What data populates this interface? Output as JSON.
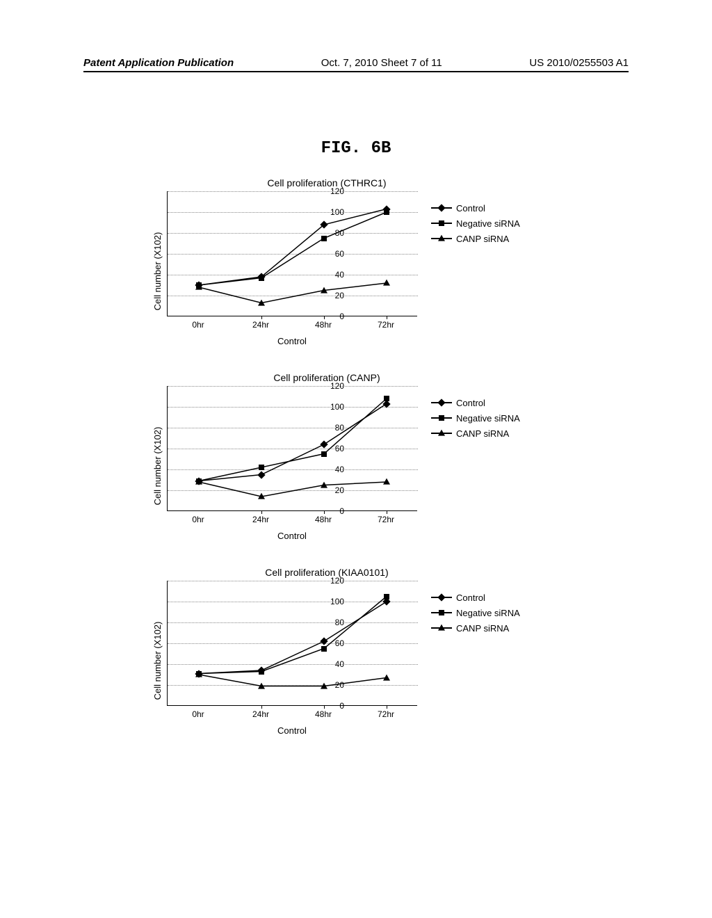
{
  "header": {
    "left": "Patent Application Publication",
    "center": "Oct. 7, 2010  Sheet 7 of 11",
    "right": "US 2010/0255503 A1"
  },
  "figure_label": "FIG. 6B",
  "charts": [
    {
      "title": "Cell proliferation (CTHRC1)",
      "y_label": "Cell number (X102)",
      "x_label": "Control",
      "x_categories": [
        "0hr",
        "24hr",
        "48hr",
        "72hr"
      ],
      "ylim": [
        0,
        120
      ],
      "ytick_step": 20,
      "grid_color": "#888888",
      "background_color": "#ffffff",
      "line_color": "#000000",
      "series": [
        {
          "name": "Control",
          "marker": "diamond",
          "values": [
            30,
            38,
            88,
            103
          ]
        },
        {
          "name": "Negative siRNA",
          "marker": "square",
          "values": [
            30,
            37,
            75,
            100
          ]
        },
        {
          "name": "CANP siRNA",
          "marker": "triangle",
          "values": [
            28,
            13,
            25,
            32
          ]
        }
      ]
    },
    {
      "title": "Cell proliferation (CANP)",
      "y_label": "Cell number (X102)",
      "x_label": "Control",
      "x_categories": [
        "0hr",
        "24hr",
        "48hr",
        "72hr"
      ],
      "ylim": [
        0,
        120
      ],
      "ytick_step": 20,
      "grid_color": "#888888",
      "background_color": "#ffffff",
      "line_color": "#000000",
      "series": [
        {
          "name": "Control",
          "marker": "diamond",
          "values": [
            29,
            35,
            64,
            103
          ]
        },
        {
          "name": "Negative siRNA",
          "marker": "square",
          "values": [
            29,
            42,
            55,
            108
          ]
        },
        {
          "name": "CANP siRNA",
          "marker": "triangle",
          "values": [
            28,
            14,
            25,
            28
          ]
        }
      ]
    },
    {
      "title": "Cell proliferation (KIAA0101)",
      "y_label": "Cell number (X102)",
      "x_label": "Control",
      "x_categories": [
        "0hr",
        "24hr",
        "48hr",
        "72hr"
      ],
      "ylim": [
        0,
        120
      ],
      "ytick_step": 20,
      "grid_color": "#888888",
      "background_color": "#ffffff",
      "line_color": "#000000",
      "series": [
        {
          "name": "Control",
          "marker": "diamond",
          "values": [
            31,
            34,
            62,
            100
          ]
        },
        {
          "name": "Negative siRNA",
          "marker": "square",
          "values": [
            31,
            33,
            55,
            105
          ]
        },
        {
          "name": "CANP siRNA",
          "marker": "triangle",
          "values": [
            30,
            19,
            19,
            27
          ]
        }
      ]
    }
  ],
  "legend_labels": [
    "Control",
    "Negative siRNA",
    "CANP siRNA"
  ]
}
